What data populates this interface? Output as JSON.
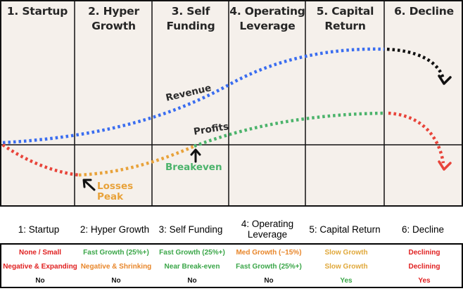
{
  "stages": [
    {
      "title_lines": [
        "1. Startup"
      ]
    },
    {
      "title_lines": [
        "2. Hyper",
        "Growth"
      ]
    },
    {
      "title_lines": [
        "3. Self",
        "Funding"
      ]
    },
    {
      "title_lines": [
        "4. Operating",
        "Leverage"
      ]
    },
    {
      "title_lines": [
        "5. Capital",
        "Return"
      ]
    },
    {
      "title_lines": [
        "6. Decline"
      ]
    }
  ],
  "curves": {
    "revenue_label": "Revenue",
    "profits_label": "Profits",
    "breakeven_label": "Breakeven",
    "losses_label_lines": [
      "Losses",
      "Peak"
    ]
  },
  "colors": {
    "revenue": "#3a6df0",
    "profits": "#4bb36b",
    "losses": "#e8443a",
    "loss_recovery": "#e8a23a",
    "decline_revenue": "#111111",
    "breakeven_text": "#4bb36b",
    "losses_text": "#e8a23a"
  },
  "table": {
    "headers": [
      "1: Startup",
      "2: Hyper Growth",
      "3: Self Funding",
      "4: Operating Leverage",
      "5: Capital Return",
      "6: Decline"
    ],
    "rows": [
      [
        {
          "text": "None / Small",
          "color": "#e02020"
        },
        {
          "text": "Fast Growth (25%+)",
          "color": "#3aa648"
        },
        {
          "text": "Fast Growth (25%+)",
          "color": "#3aa648"
        },
        {
          "text": "Med Growth (~15%)",
          "color": "#e8862a"
        },
        {
          "text": "Slow Growth",
          "color": "#e0a83a"
        },
        {
          "text": "Declining",
          "color": "#e02020"
        }
      ],
      [
        {
          "text": "Negative & Expanding",
          "color": "#e02020"
        },
        {
          "text": "Negative & Shrinking",
          "color": "#e8862a"
        },
        {
          "text": "Near Break-even",
          "color": "#3aa648"
        },
        {
          "text": "Fast Growth (25%+)",
          "color": "#3aa648"
        },
        {
          "text": "Slow Growth",
          "color": "#e0a83a"
        },
        {
          "text": "Declining",
          "color": "#e02020"
        }
      ],
      [
        {
          "text": "No",
          "color": "#111111"
        },
        {
          "text": "No",
          "color": "#111111"
        },
        {
          "text": "No",
          "color": "#111111"
        },
        {
          "text": "No",
          "color": "#111111"
        },
        {
          "text": "Yes",
          "color": "#3aa648"
        },
        {
          "text": "Yes",
          "color": "#e02020"
        }
      ]
    ]
  }
}
